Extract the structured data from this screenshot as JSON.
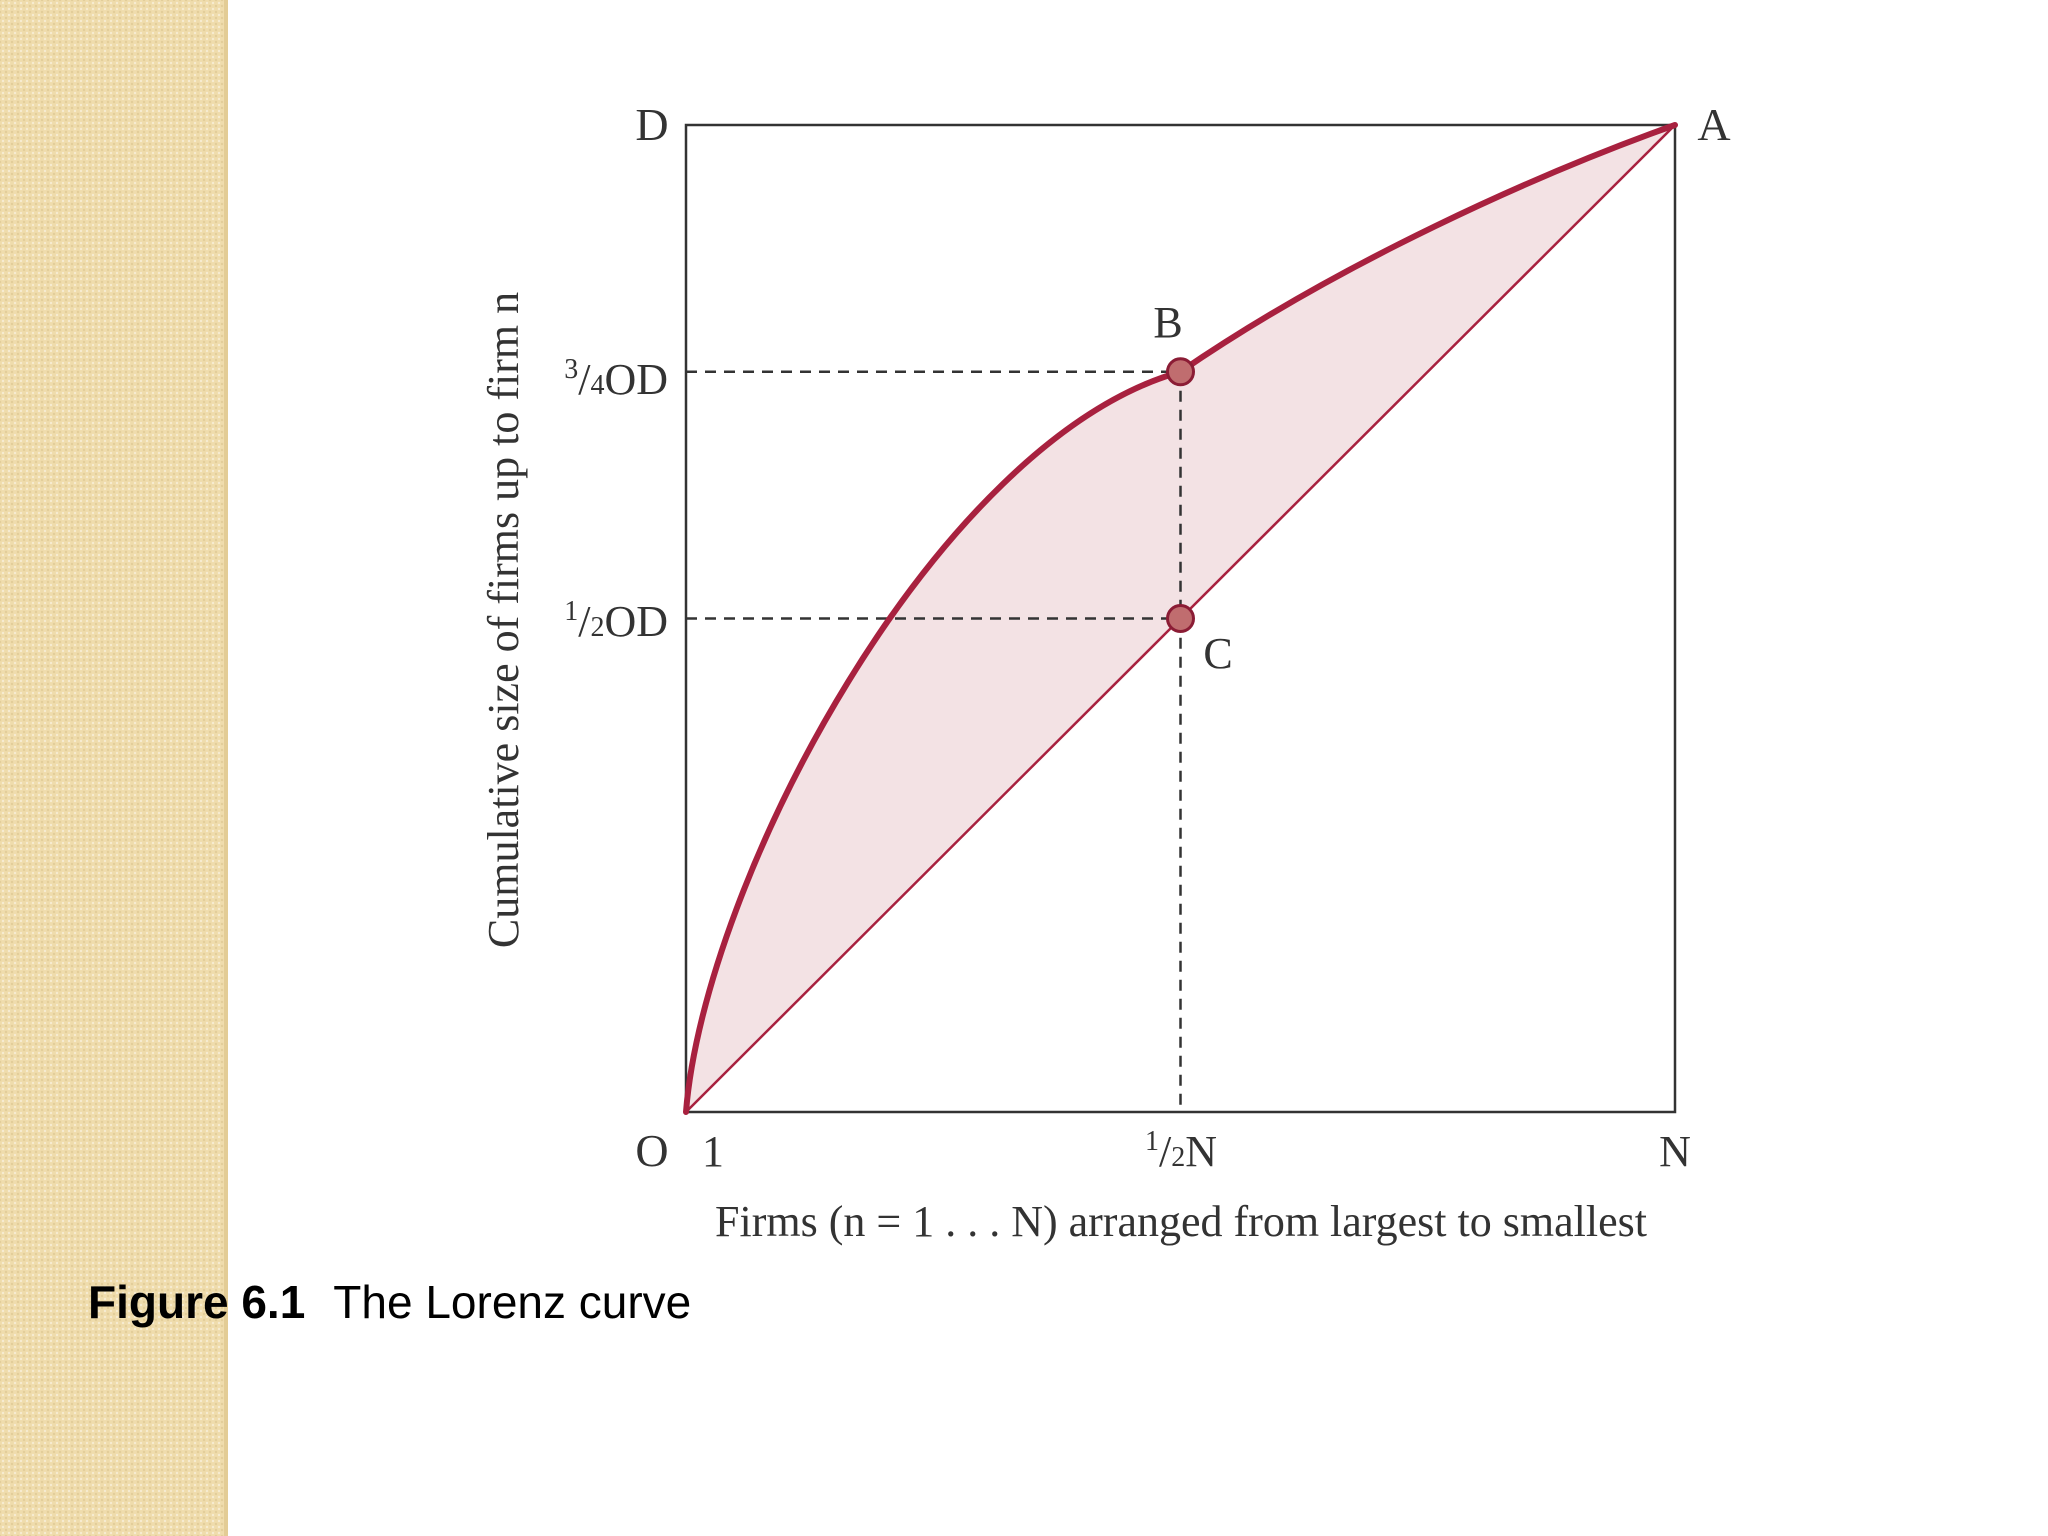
{
  "diagram": {
    "corner_labels": {
      "top_left": "D",
      "top_right": "A",
      "bottom_left": "O"
    },
    "y_axis": {
      "label": "Cumulative size of firms up to firm n",
      "marks": [
        {
          "num": "3",
          "den": "4",
          "suffix": "OD",
          "value": 0.75
        },
        {
          "num": "1",
          "den": "2",
          "suffix": "OD",
          "value": 0.5
        }
      ]
    },
    "x_axis": {
      "label": "Firms (n = 1 . . . N) arranged from largest to smallest",
      "tick_first": "1",
      "tick_mid": {
        "num": "1",
        "den": "2",
        "suffix": "N",
        "value": 0.5
      },
      "tick_last": "N"
    },
    "points": [
      {
        "label": "B",
        "x": 0.5,
        "y": 0.75
      },
      {
        "label": "C",
        "x": 0.5,
        "y": 0.5
      }
    ],
    "curve": {
      "x": [
        0,
        0.5,
        1
      ],
      "y": [
        0,
        0.75,
        1
      ]
    },
    "diagonal": {
      "x": [
        0,
        1
      ],
      "y": [
        0,
        1
      ]
    },
    "colors": {
      "curve": "#a8213f",
      "fill": "#f3e2e4",
      "point_fill": "#c06d6f",
      "point_stroke": "#8b1c35",
      "frame": "#333333"
    }
  },
  "caption": {
    "figure_number": "Figure 6.1",
    "title": "The Lorenz curve"
  }
}
